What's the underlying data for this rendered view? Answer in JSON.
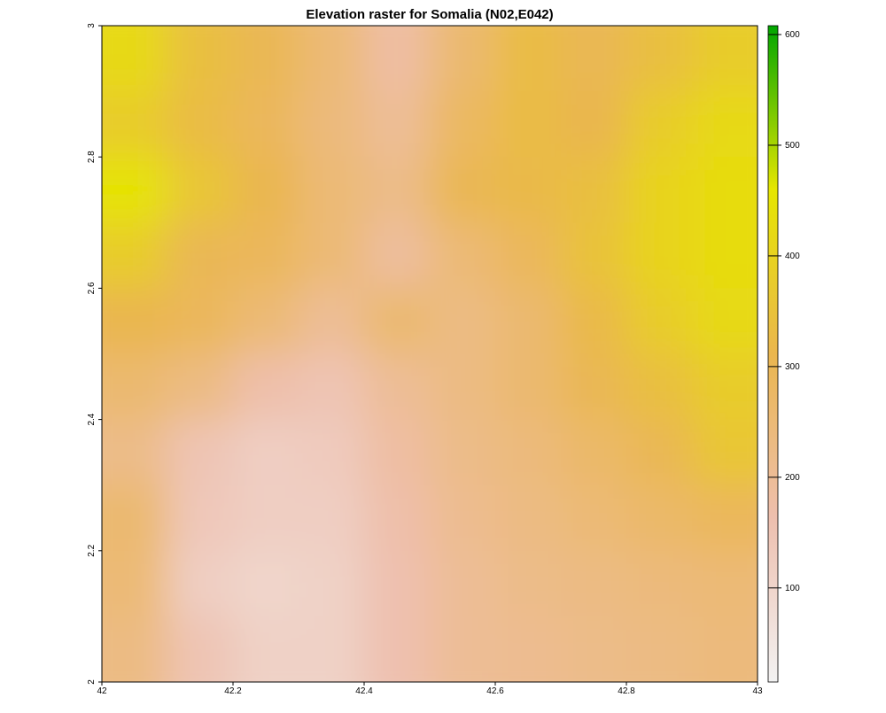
{
  "chart_data": {
    "type": "raster",
    "title": "Elevation raster for Somalia (N02,E042)",
    "x": [
      42.05,
      42.15,
      42.25,
      42.35,
      42.45,
      42.55,
      42.65,
      42.75,
      42.85,
      42.95
    ],
    "y": [
      2.95,
      2.85,
      2.75,
      2.65,
      2.55,
      2.45,
      2.35,
      2.25,
      2.15,
      2.05
    ],
    "z": [
      [
        420,
        340,
        300,
        250,
        180,
        260,
        330,
        300,
        340,
        380
      ],
      [
        380,
        330,
        290,
        240,
        200,
        280,
        330,
        310,
        380,
        420
      ],
      [
        450,
        360,
        310,
        250,
        220,
        300,
        320,
        340,
        400,
        430
      ],
      [
        380,
        300,
        290,
        250,
        190,
        250,
        290,
        350,
        400,
        430
      ],
      [
        310,
        290,
        250,
        200,
        260,
        230,
        260,
        320,
        380,
        420
      ],
      [
        260,
        230,
        170,
        150,
        200,
        230,
        260,
        300,
        340,
        380
      ],
      [
        220,
        150,
        120,
        130,
        180,
        220,
        240,
        270,
        300,
        360
      ],
      [
        260,
        140,
        120,
        120,
        170,
        210,
        230,
        250,
        270,
        290
      ],
      [
        250,
        120,
        100,
        110,
        160,
        200,
        220,
        230,
        240,
        250
      ],
      [
        230,
        150,
        110,
        110,
        160,
        200,
        210,
        220,
        230,
        240
      ]
    ],
    "xlim": [
      42,
      43
    ],
    "xticks": [
      42,
      42.2,
      42.4,
      42.6,
      42.8,
      43
    ],
    "ylim": [
      2,
      3
    ],
    "yticks": [
      2,
      2.2,
      2.4,
      2.6,
      2.8,
      3
    ],
    "zlim": [
      15,
      608
    ],
    "zticks": [
      100,
      200,
      300,
      400,
      500,
      600
    ],
    "colors": [
      "#F2F2F2",
      "#EEBFAE",
      "#EAB64E",
      "#E6E600",
      "#00A600"
    ]
  }
}
